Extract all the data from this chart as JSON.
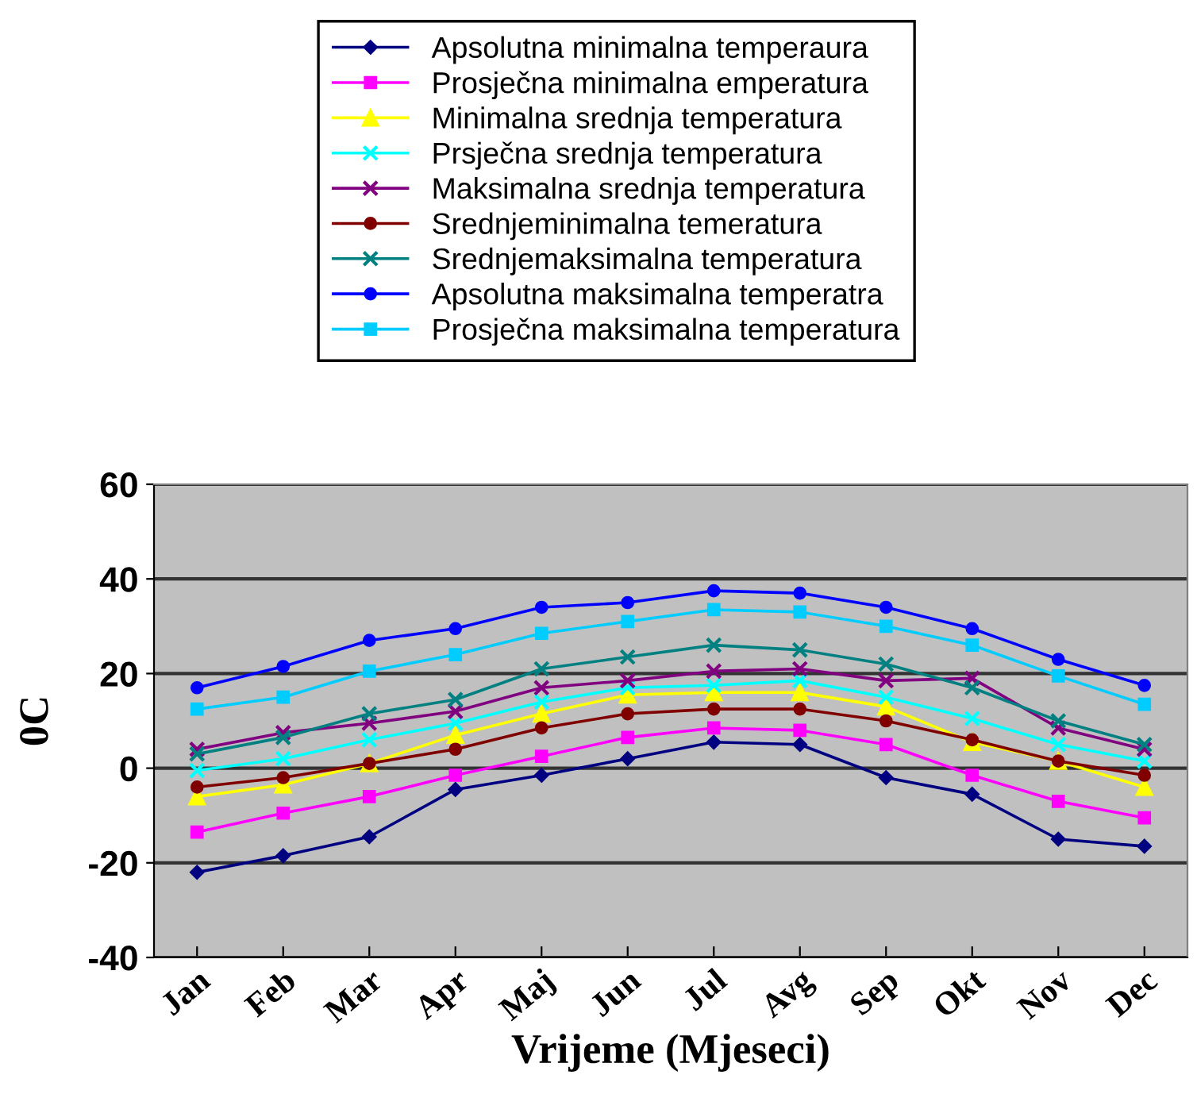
{
  "chart_data": {
    "type": "line",
    "xlabel": "Vrijeme (Mjeseci)",
    "ylabel": "0C",
    "categories": [
      "Jan",
      "Feb",
      "Mar",
      "Apr",
      "Maj",
      "Jun",
      "Jul",
      "Avg",
      "Sep",
      "Okt",
      "Nov",
      "Dec"
    ],
    "ylim": [
      -40,
      60
    ],
    "yticks": [
      -40,
      -20,
      0,
      20,
      40,
      60
    ],
    "grid": "y",
    "legend": "top",
    "series": [
      {
        "name": "Apsolutna minimalna temperaura",
        "color": "#000080",
        "marker": "diamond",
        "values": [
          -22,
          -18.5,
          -14.5,
          -4.5,
          -1.5,
          2,
          5.5,
          5,
          -2,
          -5.5,
          -15,
          -16.5
        ]
      },
      {
        "name": "Prosječna minimalna emperatura",
        "color": "#ff00ff",
        "marker": "square",
        "values": [
          -13.5,
          -9.5,
          -6,
          -1.5,
          2.5,
          6.5,
          8.5,
          8,
          5,
          -1.5,
          -7,
          -10.5
        ]
      },
      {
        "name": "Minimalna srednja temperatura",
        "color": "#ffff00",
        "marker": "triangle",
        "values": [
          -6,
          -3.5,
          1,
          7,
          11.5,
          15.5,
          16,
          16,
          13,
          5.5,
          1.5,
          -4
        ]
      },
      {
        "name": "Prsječna srednja temperatura",
        "color": "#00ffff",
        "marker": "cross",
        "values": [
          -0.5,
          2,
          6,
          9.5,
          14,
          17,
          17.5,
          18.5,
          15,
          10.5,
          5,
          1.5
        ]
      },
      {
        "name": "Maksimalna srednja temperatura",
        "color": "#800080",
        "marker": "cross",
        "values": [
          4,
          7.5,
          9.5,
          12,
          17,
          18.5,
          20.5,
          21,
          18.5,
          19,
          8.5,
          4
        ]
      },
      {
        "name": "Srednjeminimalna temeratura",
        "color": "#800000",
        "marker": "circle",
        "values": [
          -4,
          -2,
          1,
          4,
          8.5,
          11.5,
          12.5,
          12.5,
          10,
          6,
          1.5,
          -1.5
        ]
      },
      {
        "name": "Srednjemaksimalna temperatura",
        "color": "#008080",
        "marker": "cross",
        "values": [
          3,
          6.5,
          11.5,
          14.5,
          21,
          23.5,
          26,
          25,
          22,
          17,
          10,
          5
        ]
      },
      {
        "name": "Apsolutna maksimalna temperatra",
        "color": "#0000ff",
        "marker": "circle",
        "values": [
          17,
          21.5,
          27,
          29.5,
          34,
          35,
          37.5,
          37,
          34,
          29.5,
          23,
          17.5
        ]
      },
      {
        "name": "Prosječna maksimalna temperatura",
        "color": "#00ccff",
        "marker": "square",
        "values": [
          12.5,
          15,
          20.5,
          24,
          28.5,
          31,
          33.5,
          33,
          30,
          26,
          19.5,
          13.5
        ]
      }
    ]
  }
}
